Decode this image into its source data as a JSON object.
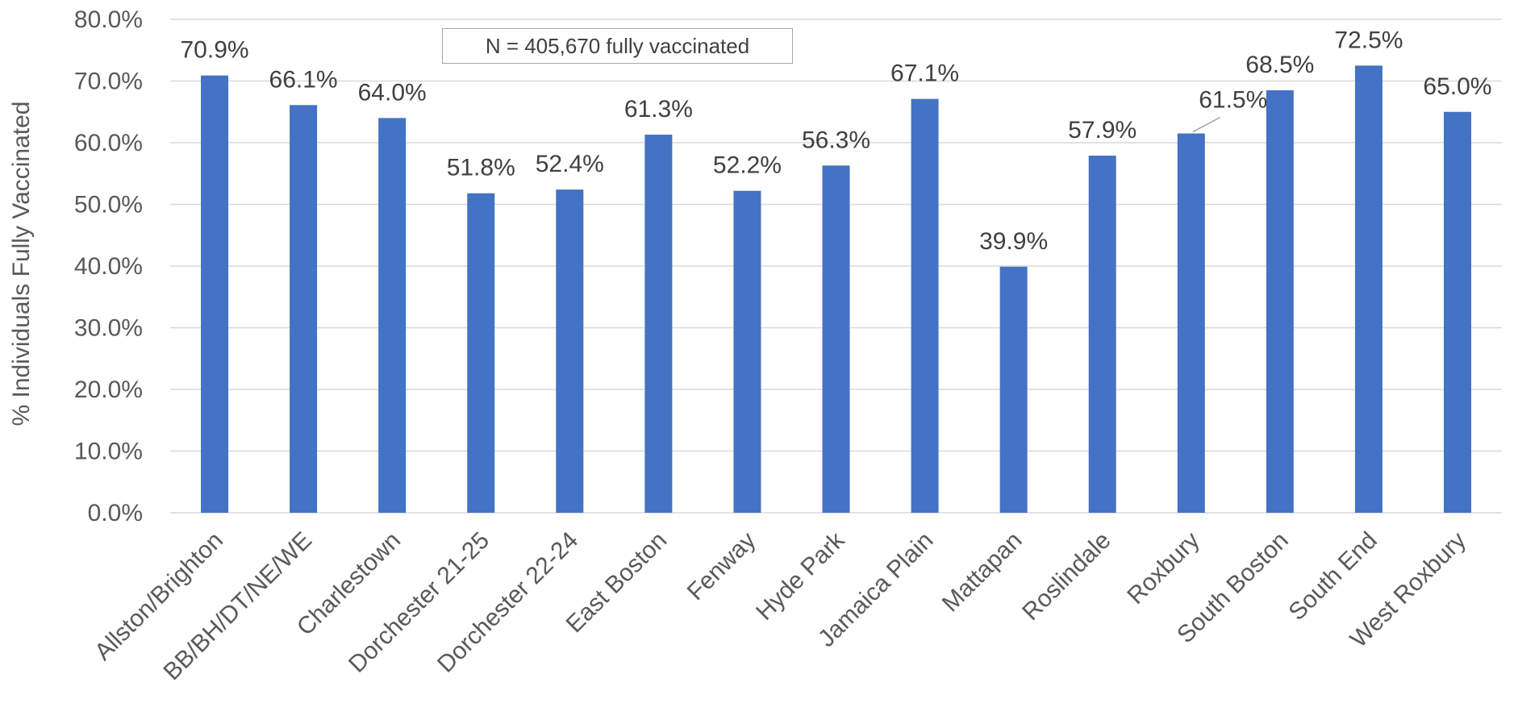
{
  "chart_data": {
    "type": "bar",
    "title": "",
    "xlabel": "",
    "ylabel": "% Individuals Fully Vaccinated",
    "ylim": [
      0,
      80
    ],
    "y_tick_labels": [
      "0.0%",
      "10.0%",
      "20.0%",
      "30.0%",
      "40.0%",
      "50.0%",
      "60.0%",
      "70.0%",
      "80.0%"
    ],
    "grid": true,
    "legend": "none",
    "bar_color": "#4472C4",
    "categories": [
      "Allston/Brighton",
      "BB/BH/DT/NE/WE",
      "Charlestown",
      "Dorchester 21-25",
      "Dorchester 22-24",
      "East Boston",
      "Fenway",
      "Hyde Park",
      "Jamaica Plain",
      "Mattapan",
      "Roslindale",
      "Roxbury",
      "South Boston",
      "South End",
      "West Roxbury"
    ],
    "values": [
      70.9,
      66.1,
      64.0,
      51.8,
      52.4,
      61.3,
      52.2,
      56.3,
      67.1,
      39.9,
      57.9,
      61.5,
      68.5,
      72.5,
      65.0
    ],
    "data_labels": [
      "70.9%",
      "66.1%",
      "64.0%",
      "51.8%",
      "52.4%",
      "61.3%",
      "52.2%",
      "56.3%",
      "67.1%",
      "39.9%",
      "57.9%",
      "61.5%",
      "68.5%",
      "72.5%",
      "65.0%"
    ],
    "annotations": [
      "N = 405,670 fully vaccinated"
    ]
  }
}
